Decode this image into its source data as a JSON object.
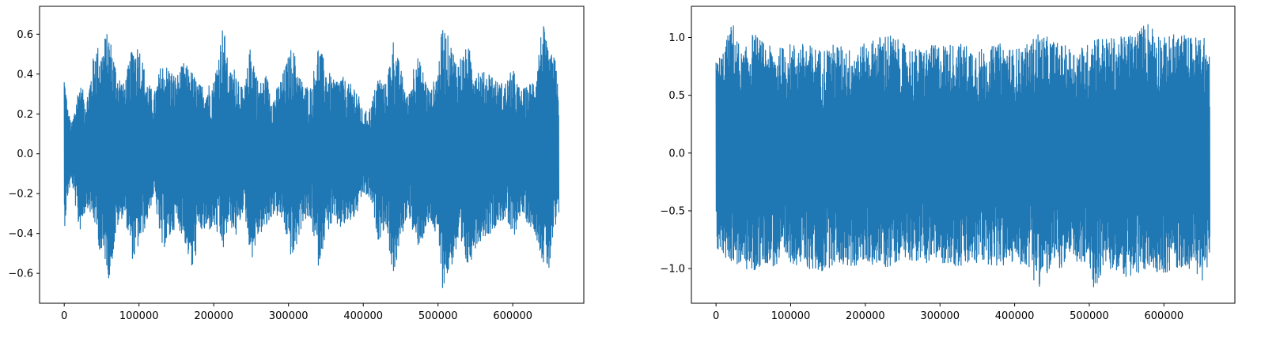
{
  "chart_data": [
    {
      "type": "line",
      "title": "",
      "xlabel": "",
      "ylabel": "",
      "xlim": [
        -33000,
        695000
      ],
      "ylim": [
        -0.75,
        0.74
      ],
      "x_ticks": [
        0,
        100000,
        200000,
        300000,
        400000,
        500000,
        600000
      ],
      "x_tick_labels": [
        "0",
        "100000",
        "200000",
        "300000",
        "400000",
        "500000",
        "600000"
      ],
      "y_ticks": [
        -0.6,
        -0.4,
        -0.2,
        0.0,
        0.2,
        0.4,
        0.6
      ],
      "y_tick_labels": [
        "−0.6",
        "−0.4",
        "−0.2",
        "0.0",
        "0.2",
        "0.4",
        "0.6"
      ],
      "grid": false,
      "series": [
        {
          "color": "#1f77b4",
          "x_range": [
            0,
            661500
          ],
          "envelope": {
            "x": [
              0,
              5000,
              10000,
              20000,
              30000,
              42000,
              50000,
              55000,
              60000,
              70000,
              80000,
              92000,
              100000,
              110000,
              120000,
              130000,
              140000,
              150000,
              160000,
              172000,
              180000,
              190000,
              200000,
              213000,
              220000,
              230000,
              240000,
              250000,
              260000,
              270000,
              280000,
              292000,
              305000,
              315000,
              320000,
              330000,
              340000,
              350000,
              360000,
              370000,
              380000,
              390000,
              400000,
              410000,
              420000,
              430000,
              440000,
              450000,
              460000,
              470000,
              480000,
              490000,
              500000,
              506000,
              515000,
              525000,
              540000,
              550000,
              560000,
              570000,
              580000,
              590000,
              600000,
              610000,
              620000,
              630000,
              640000,
              648000,
              655000,
              661500
            ],
            "upper": [
              0.42,
              0.22,
              0.15,
              0.36,
              0.28,
              0.56,
              0.52,
              0.6,
              0.61,
              0.43,
              0.35,
              0.55,
              0.56,
              0.38,
              0.3,
              0.46,
              0.44,
              0.39,
              0.46,
              0.41,
              0.35,
              0.35,
              0.37,
              0.67,
              0.41,
              0.44,
              0.3,
              0.57,
              0.35,
              0.4,
              0.29,
              0.4,
              0.55,
              0.4,
              0.35,
              0.34,
              0.56,
              0.44,
              0.37,
              0.4,
              0.35,
              0.35,
              0.2,
              0.24,
              0.4,
              0.35,
              0.58,
              0.43,
              0.28,
              0.52,
              0.42,
              0.31,
              0.44,
              0.65,
              0.58,
              0.47,
              0.54,
              0.46,
              0.41,
              0.42,
              0.36,
              0.36,
              0.43,
              0.32,
              0.34,
              0.4,
              0.67,
              0.5,
              0.5,
              0.38
            ],
            "lower": [
              -0.38,
              -0.2,
              -0.14,
              -0.4,
              -0.26,
              -0.37,
              -0.55,
              -0.54,
              -0.64,
              -0.38,
              -0.3,
              -0.55,
              -0.46,
              -0.35,
              -0.2,
              -0.49,
              -0.44,
              -0.35,
              -0.43,
              -0.62,
              -0.39,
              -0.4,
              -0.37,
              -0.49,
              -0.35,
              -0.42,
              -0.27,
              -0.54,
              -0.41,
              -0.38,
              -0.3,
              -0.34,
              -0.55,
              -0.4,
              -0.33,
              -0.35,
              -0.57,
              -0.4,
              -0.35,
              -0.38,
              -0.35,
              -0.32,
              -0.2,
              -0.24,
              -0.44,
              -0.36,
              -0.63,
              -0.44,
              -0.29,
              -0.48,
              -0.43,
              -0.34,
              -0.46,
              -0.68,
              -0.6,
              -0.49,
              -0.58,
              -0.47,
              -0.42,
              -0.4,
              -0.35,
              -0.33,
              -0.44,
              -0.3,
              -0.35,
              -0.4,
              -0.55,
              -0.6,
              -0.41,
              -0.34
            ]
          }
        }
      ]
    },
    {
      "type": "line",
      "title": "",
      "xlabel": "",
      "ylabel": "",
      "xlim": [
        -33000,
        695000
      ],
      "ylim": [
        -1.3,
        1.27
      ],
      "x_ticks": [
        0,
        100000,
        200000,
        300000,
        400000,
        500000,
        600000
      ],
      "x_tick_labels": [
        "0",
        "100000",
        "200000",
        "300000",
        "400000",
        "500000",
        "600000"
      ],
      "y_ticks": [
        -1.0,
        -0.5,
        0.0,
        0.5,
        1.0
      ],
      "y_tick_labels": [
        "−1.0",
        "−0.5",
        "0.0",
        "0.5",
        "1.0"
      ],
      "grid": false,
      "series": [
        {
          "color": "#1f77b4",
          "x_range": [
            0,
            661500
          ],
          "envelope": {
            "x": [
              0,
              10000,
              22000,
              35000,
              50000,
              65000,
              80000,
              100000,
              120000,
              140000,
              160000,
              180000,
              200000,
              230000,
              250000,
              270000,
              300000,
              330000,
              360000,
              380000,
              400000,
              420000,
              430000,
              445000,
              460000,
              480000,
              500000,
              505000,
              520000,
              540000,
              560000,
              580000,
              600000,
              620000,
              640000,
              650000,
              661500
            ],
            "upper": [
              0.8,
              0.9,
              1.15,
              0.85,
              1.05,
              0.95,
              0.9,
              0.95,
              0.95,
              0.9,
              0.95,
              0.9,
              0.95,
              1.05,
              0.95,
              0.9,
              0.95,
              0.95,
              0.9,
              0.95,
              0.9,
              0.95,
              1.05,
              1.0,
              0.95,
              0.9,
              0.95,
              1.05,
              1.0,
              1.0,
              1.05,
              1.15,
              1.0,
              1.05,
              1.0,
              1.05,
              0.9
            ],
            "lower": [
              -0.85,
              -0.9,
              -0.95,
              -1.0,
              -1.05,
              -0.95,
              -1.0,
              -0.95,
              -1.0,
              -1.05,
              -0.95,
              -1.0,
              -0.95,
              -1.0,
              -0.9,
              -0.95,
              -0.95,
              -1.0,
              -0.95,
              -1.0,
              -0.95,
              -1.0,
              -1.18,
              -1.05,
              -1.0,
              -0.95,
              -1.0,
              -1.2,
              -1.0,
              -1.05,
              -1.1,
              -1.0,
              -1.05,
              -1.0,
              -1.0,
              -1.15,
              -0.9
            ]
          }
        }
      ]
    }
  ]
}
